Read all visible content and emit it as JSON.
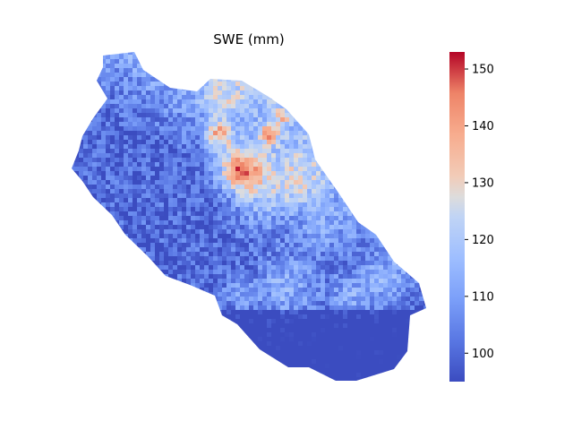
{
  "chart_data": {
    "type": "heatmap",
    "title": "SWE (mm)",
    "xlabel": "",
    "ylabel": "",
    "colormap": "coolwarm",
    "colorbar": {
      "vmin": 95,
      "vmax": 153,
      "ticks": [
        100,
        110,
        120,
        130,
        140,
        150
      ],
      "tick_labels": [
        "100",
        "110",
        "120",
        "130",
        "140",
        "150"
      ]
    },
    "grid": false,
    "axes_visible": false,
    "region": {
      "description_values": {
        "base_low_mm": 100,
        "base_high_mm": 128,
        "peak_mm": 153
      }
    }
  }
}
